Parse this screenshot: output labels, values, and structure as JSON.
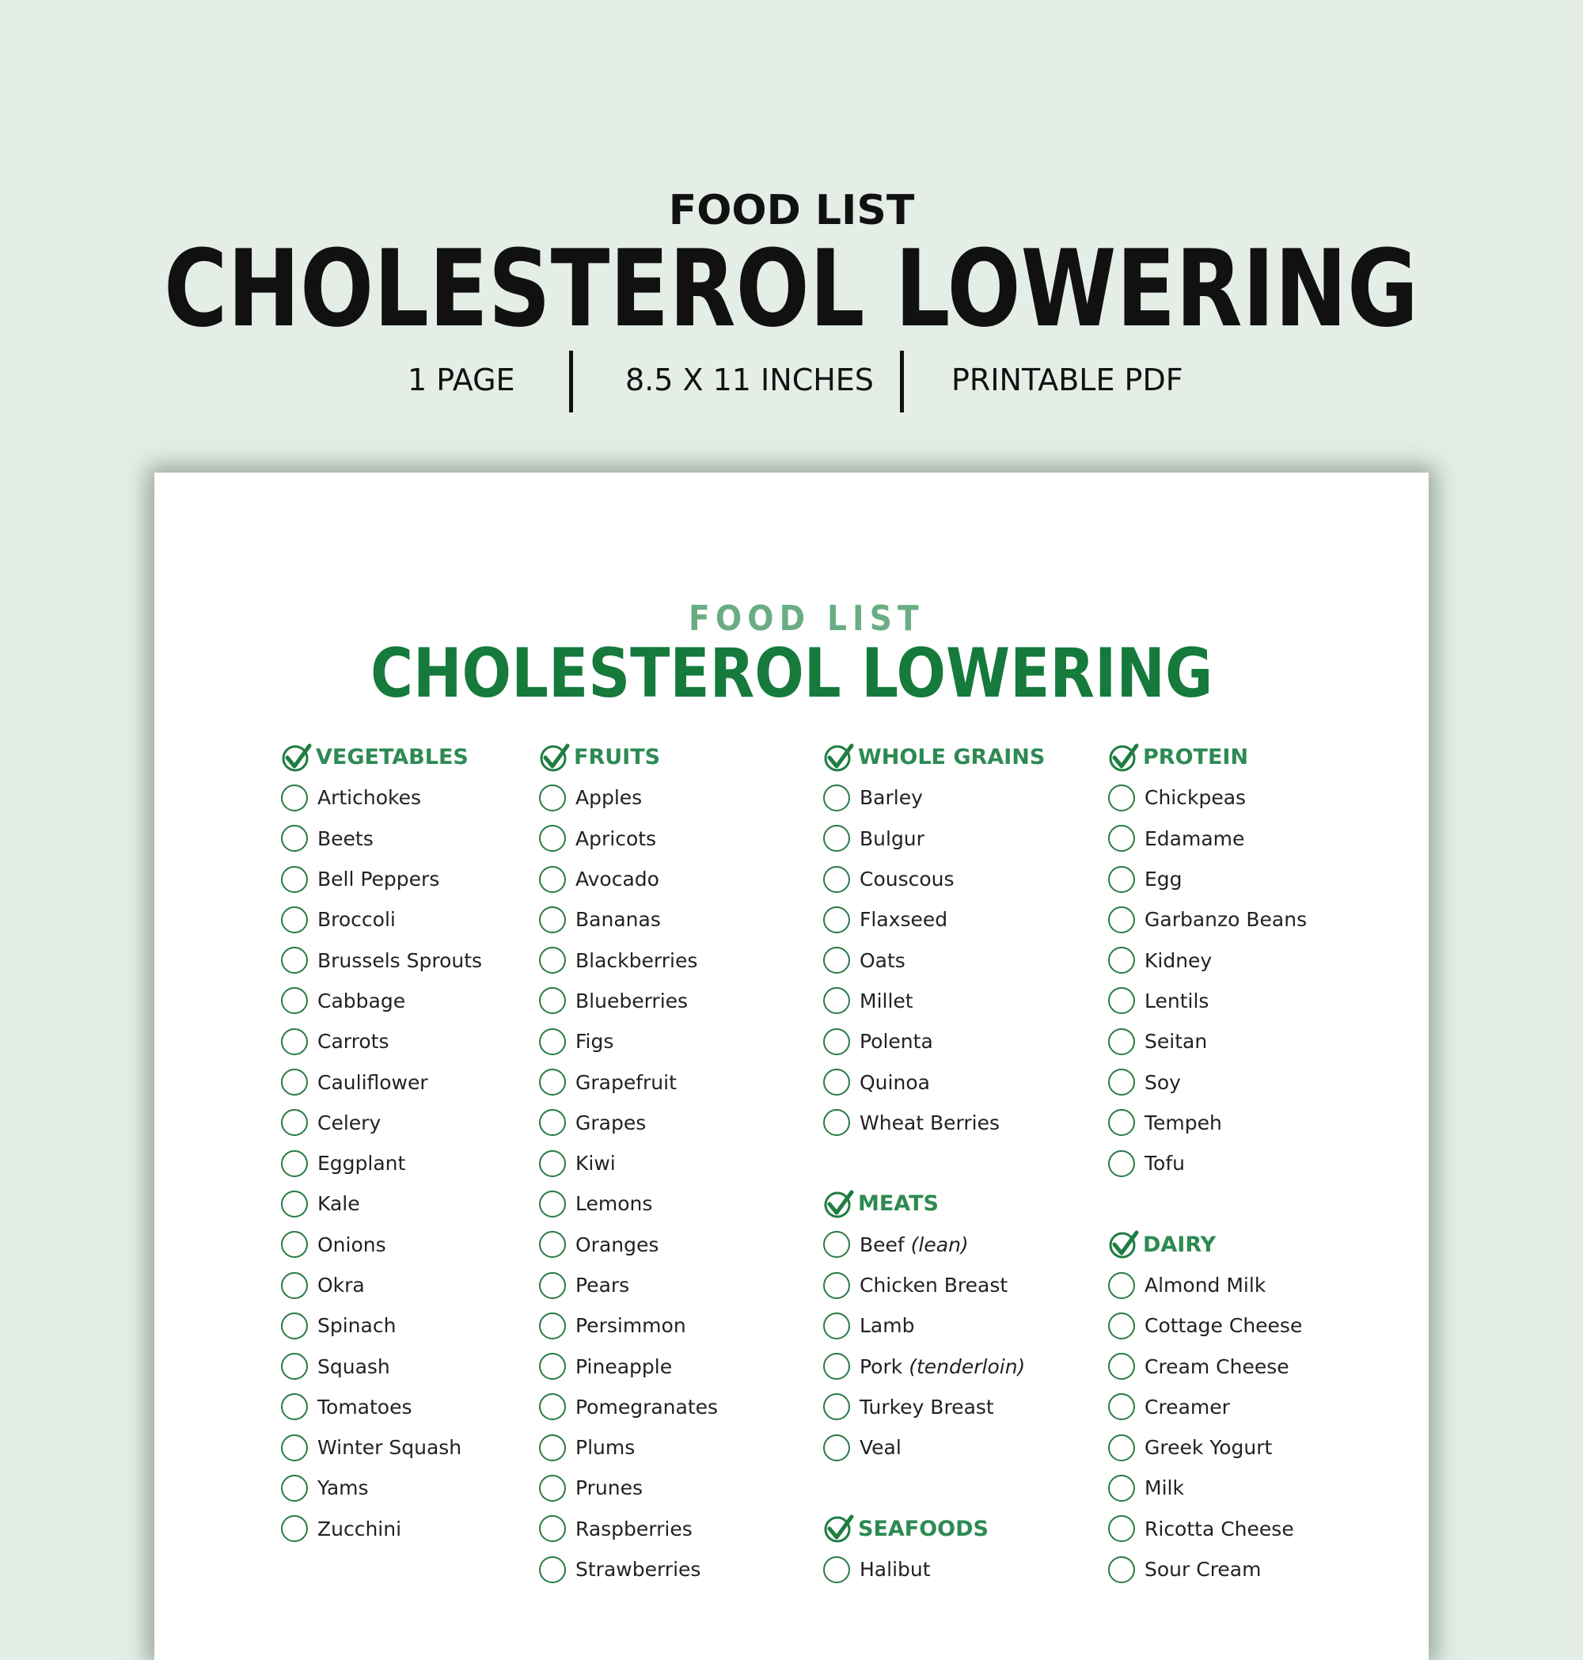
{
  "banner": {
    "kicker": "FOOD LIST",
    "title": "CHOLESTEROL LOWERING",
    "meta": [
      "1 PAGE",
      "8.5 X 11 INCHES",
      "PRINTABLE PDF"
    ]
  },
  "colors": {
    "background": "#e4eee6",
    "accent": "#157a3c",
    "accent_light": "#6aad84",
    "heading": "#2d8a52"
  },
  "sheet": {
    "kicker": "FOOD LIST",
    "title": "CHOLESTEROL LOWERING",
    "columns": [
      [
        {
          "heading": "VEGETABLES",
          "items": [
            {
              "text": "Artichokes"
            },
            {
              "text": "Beets"
            },
            {
              "text": "Bell Peppers"
            },
            {
              "text": "Broccoli"
            },
            {
              "text": "Brussels Sprouts"
            },
            {
              "text": "Cabbage"
            },
            {
              "text": "Carrots"
            },
            {
              "text": "Cauliflower"
            },
            {
              "text": "Celery"
            },
            {
              "text": "Eggplant"
            },
            {
              "text": "Kale"
            },
            {
              "text": "Onions"
            },
            {
              "text": "Okra"
            },
            {
              "text": "Spinach"
            },
            {
              "text": "Squash"
            },
            {
              "text": "Tomatoes"
            },
            {
              "text": "Winter Squash"
            },
            {
              "text": "Yams"
            },
            {
              "text": "Zucchini"
            }
          ]
        }
      ],
      [
        {
          "heading": "FRUITS",
          "items": [
            {
              "text": "Apples"
            },
            {
              "text": "Apricots"
            },
            {
              "text": "Avocado"
            },
            {
              "text": "Bananas"
            },
            {
              "text": "Blackberries"
            },
            {
              "text": "Blueberries"
            },
            {
              "text": "Figs"
            },
            {
              "text": "Grapefruit"
            },
            {
              "text": "Grapes"
            },
            {
              "text": "Kiwi"
            },
            {
              "text": "Lemons"
            },
            {
              "text": "Oranges"
            },
            {
              "text": "Pears"
            },
            {
              "text": "Persimmon"
            },
            {
              "text": "Pineapple"
            },
            {
              "text": "Pomegranates"
            },
            {
              "text": "Plums"
            },
            {
              "text": "Prunes"
            },
            {
              "text": "Raspberries"
            },
            {
              "text": "Strawberries"
            }
          ]
        }
      ],
      [
        {
          "heading": "WHOLE GRAINS",
          "items": [
            {
              "text": "Barley"
            },
            {
              "text": "Bulgur"
            },
            {
              "text": "Couscous"
            },
            {
              "text": "Flaxseed"
            },
            {
              "text": "Oats"
            },
            {
              "text": "Millet"
            },
            {
              "text": "Polenta"
            },
            {
              "text": "Quinoa"
            },
            {
              "text": "Wheat Berries"
            }
          ]
        },
        {
          "heading": "MEATS",
          "items": [
            {
              "text": "Beef",
              "note": "(lean)"
            },
            {
              "text": "Chicken Breast"
            },
            {
              "text": "Lamb"
            },
            {
              "text": "Pork",
              "note": "(tenderloin)"
            },
            {
              "text": "Turkey Breast"
            },
            {
              "text": "Veal"
            }
          ]
        },
        {
          "heading": "SEAFOODS",
          "items": [
            {
              "text": "Halibut"
            }
          ]
        }
      ],
      [
        {
          "heading": "PROTEIN",
          "items": [
            {
              "text": "Chickpeas"
            },
            {
              "text": "Edamame"
            },
            {
              "text": "Egg"
            },
            {
              "text": "Garbanzo Beans"
            },
            {
              "text": "Kidney"
            },
            {
              "text": "Lentils"
            },
            {
              "text": "Seitan"
            },
            {
              "text": "Soy"
            },
            {
              "text": "Tempeh"
            },
            {
              "text": "Tofu"
            }
          ]
        },
        {
          "heading": "DAIRY",
          "items": [
            {
              "text": "Almond Milk"
            },
            {
              "text": "Cottage Cheese"
            },
            {
              "text": "Cream Cheese"
            },
            {
              "text": "Creamer"
            },
            {
              "text": "Greek Yogurt"
            },
            {
              "text": "Milk"
            },
            {
              "text": "Ricotta Cheese"
            },
            {
              "text": "Sour Cream"
            }
          ]
        }
      ]
    ]
  }
}
